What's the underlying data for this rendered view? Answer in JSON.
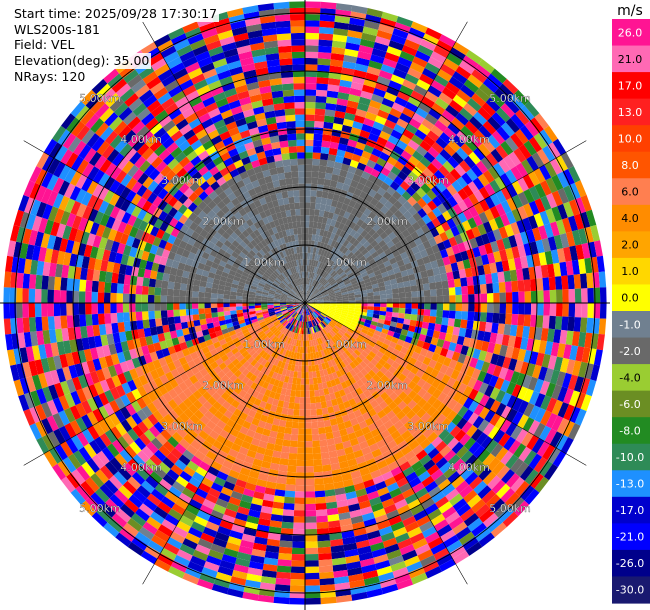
{
  "header": {
    "start_time": "Start time: 2025/09/28 17:30:17",
    "instrument": "WLS200s-181",
    "field": "Field: VEL",
    "elevation": "Elevation(deg): 35.00",
    "nrays": "NRays: 120"
  },
  "chart_data": {
    "type": "heatmap",
    "projection": "polar-ppi",
    "field": "VEL",
    "unit": "m/s",
    "n_rays": 120,
    "range_rings_km": [
      1,
      2,
      3,
      4,
      5
    ],
    "ring_labels": [
      "1.00km",
      "2.00km",
      "3.00km",
      "4.00km",
      "5.00km"
    ],
    "colorbar": {
      "unit": "m/s",
      "ticks": [
        "26.0",
        "21.0",
        "17.0",
        "13.0",
        "10.0",
        "8.0",
        "6.0",
        "4.0",
        "2.0",
        "1.0",
        "0.0",
        "-1.0",
        "-2.0",
        "-4.0",
        "-6.0",
        "-8.0",
        "-10.0",
        "-13.0",
        "-17.0",
        "-21.0",
        "-26.0",
        "-30.0"
      ],
      "colors": [
        "#ff1493",
        "#ff69b4",
        "#ff0000",
        "#ff2020",
        "#ff4000",
        "#ff5500",
        "#ff7f50",
        "#ff8c00",
        "#ffa500",
        "#ffd700",
        "#ffff00",
        "#708090",
        "#696969",
        "#9acd32",
        "#6b8e23",
        "#228b22",
        "#2e8b57",
        "#1e90ff",
        "#0000cd",
        "#0000ff",
        "#00008b",
        "#191970"
      ]
    },
    "regions": [
      {
        "description_ref": "near-field",
        "velocity_range": [
          -4.0,
          -1.0
        ],
        "range_km": [
          0,
          2.5
        ],
        "bearing_deg": [
          270,
          90
        ]
      },
      {
        "description_ref": "near-field",
        "velocity_range": [
          -1.0,
          0.0
        ],
        "range_km": [
          0,
          1.0
        ],
        "bearing_deg": [
          60,
          120
        ]
      },
      {
        "description_ref": "near-field",
        "velocity_range": [
          2.0,
          6.0
        ],
        "range_km": [
          0.5,
          3.2
        ],
        "bearing_deg": [
          110,
          250
        ]
      },
      {
        "description_ref": "far-field",
        "velocity_range": [
          -30.0,
          26.0
        ],
        "range_km": [
          3.0,
          5.2
        ]
      }
    ]
  }
}
